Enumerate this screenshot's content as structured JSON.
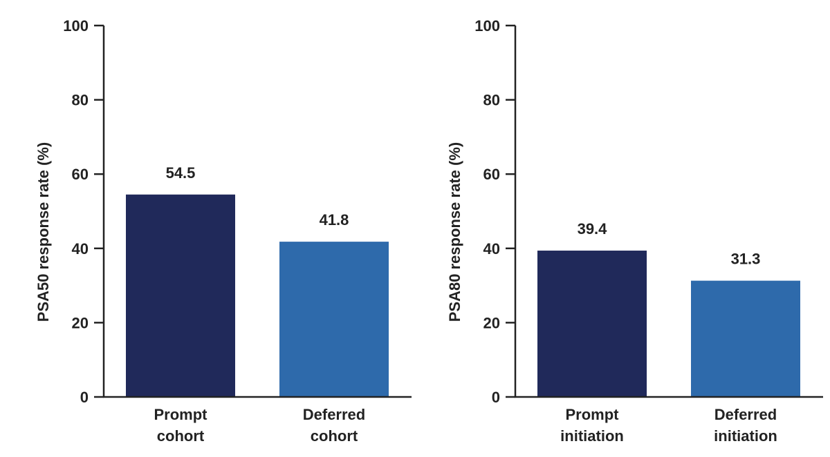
{
  "colors": {
    "dark_navy": "#20295a",
    "medium_blue": "#2e6aab",
    "axis": "#222222"
  },
  "chart_data": [
    {
      "type": "bar",
      "ylabel": "PSA50 response rate (%)",
      "ylim": [
        0,
        100
      ],
      "yticks": [
        "0",
        "20",
        "40",
        "60",
        "80",
        "100"
      ],
      "categories": [
        [
          "Prompt",
          "cohort"
        ],
        [
          "Deferred",
          "cohort"
        ]
      ],
      "values": [
        54.5,
        41.8
      ],
      "value_labels": [
        "54.5",
        "41.8"
      ],
      "bar_colors": [
        "#20295a",
        "#2e6aab"
      ]
    },
    {
      "type": "bar",
      "ylabel": "PSA80 response rate (%)",
      "ylim": [
        0,
        100
      ],
      "yticks": [
        "0",
        "20",
        "40",
        "60",
        "80",
        "100"
      ],
      "categories": [
        [
          "Prompt",
          "initiation"
        ],
        [
          "Deferred",
          "initiation"
        ]
      ],
      "values": [
        39.4,
        31.3
      ],
      "value_labels": [
        "39.4",
        "31.3"
      ],
      "bar_colors": [
        "#20295a",
        "#2e6aab"
      ]
    }
  ]
}
